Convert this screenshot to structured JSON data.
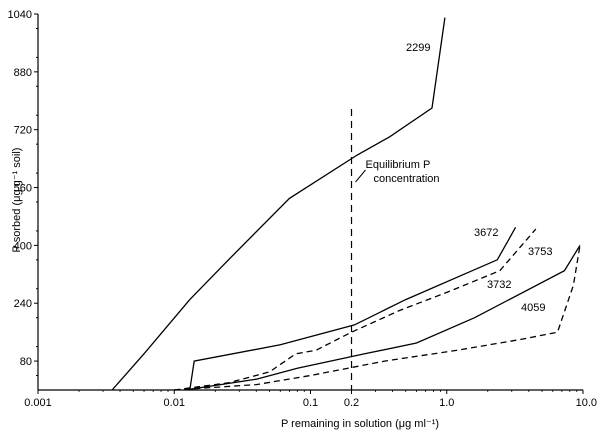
{
  "chart_data": {
    "type": "line",
    "xlabel": "P remaining in solution (μg ml⁻¹)",
    "ylabel": "P sorbed (μg g⁻¹ soil)",
    "x_scale": "log",
    "xlim": [
      0.001,
      10.0
    ],
    "ylim": [
      0,
      1040
    ],
    "x_ticks": [
      {
        "value": 0.001,
        "label": "0.001"
      },
      {
        "value": 0.01,
        "label": "0.01"
      },
      {
        "value": 0.1,
        "label": "0.1"
      },
      {
        "value": 0.2,
        "label": "0.2"
      },
      {
        "value": 1.0,
        "label": "1.0"
      },
      {
        "value": 10.0,
        "label": "10.0"
      }
    ],
    "y_ticks": [
      {
        "value": 80,
        "label": "80"
      },
      {
        "value": 240,
        "label": "240"
      },
      {
        "value": 400,
        "label": "400"
      },
      {
        "value": 560,
        "label": "560"
      },
      {
        "value": 720,
        "label": "720"
      },
      {
        "value": 880,
        "label": "880"
      },
      {
        "value": 1040,
        "label": "1040"
      }
    ],
    "grid": false,
    "vertical_line": {
      "x": 0.2,
      "style": "dashed",
      "label_line1": "Equilibrium P",
      "label_line2": "concentration"
    },
    "series": [
      {
        "name": "2299",
        "style": "solid",
        "x": [
          0.0035,
          0.006,
          0.013,
          0.025,
          0.07,
          0.22,
          0.38,
          0.78,
          0.97
        ],
        "y": [
          0,
          100,
          250,
          360,
          530,
          650,
          700,
          780,
          1030
        ]
      },
      {
        "name": "3672",
        "style": "solid",
        "x": [
          0.013,
          0.014,
          0.06,
          0.21,
          0.5,
          2.35,
          3.2
        ],
        "y": [
          0,
          80,
          125,
          180,
          250,
          360,
          450
        ]
      },
      {
        "name": "3753",
        "style": "dashed",
        "x": [
          0.01,
          0.025,
          0.05,
          0.078,
          0.11,
          0.2,
          0.45,
          1.0,
          2.45,
          4.5
        ],
        "y": [
          0,
          20,
          50,
          100,
          110,
          160,
          220,
          270,
          330,
          445
        ]
      },
      {
        "name": "3732",
        "style": "solid",
        "x": [
          0.012,
          0.04,
          0.08,
          0.25,
          0.6,
          1.6,
          7.3,
          9.5
        ],
        "y": [
          0,
          30,
          60,
          100,
          130,
          200,
          330,
          400
        ]
      },
      {
        "name": "4059",
        "style": "dashed",
        "x": [
          0.01,
          0.04,
          0.1,
          0.35,
          1.2,
          3.5,
          6.5,
          8.5,
          9.5
        ],
        "y": [
          0,
          15,
          40,
          80,
          110,
          140,
          160,
          290,
          400
        ]
      }
    ],
    "series_labels": [
      {
        "text": "2299"
      },
      {
        "text": "3672"
      },
      {
        "text": "3753"
      },
      {
        "text": "3732"
      },
      {
        "text": "4059"
      }
    ]
  }
}
